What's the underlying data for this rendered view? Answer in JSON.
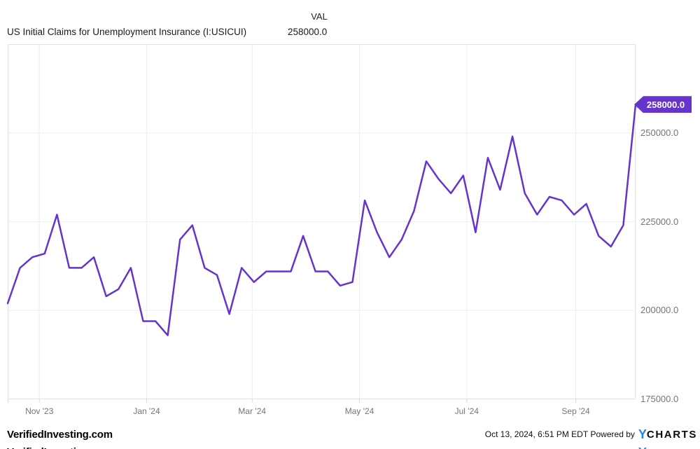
{
  "header": {
    "value_column_label": "VAL",
    "series_title": "US Initial Claims for Unemployment Insurance (I:USICUI)",
    "current_value": "258000.0"
  },
  "chart_data": {
    "type": "line",
    "title": "US Initial Claims for Unemployment Insurance (I:USICUI)",
    "xlabel": "",
    "ylabel": "",
    "legend": "none",
    "grid": true,
    "line_color": "#6633CC",
    "last_value_label": "258000.0",
    "ylim": [
      175000,
      275000
    ],
    "y_ticks": [
      {
        "label": "250000.0",
        "value": 250000
      },
      {
        "label": "225000.0",
        "value": 225000
      },
      {
        "label": "200000.0",
        "value": 200000
      },
      {
        "label": "175000.0",
        "value": 175000
      }
    ],
    "x_ticks": [
      {
        "label": "Nov '23",
        "date": "2023-11-01"
      },
      {
        "label": "Jan '24",
        "date": "2024-01-01"
      },
      {
        "label": "Mar '24",
        "date": "2024-03-01"
      },
      {
        "label": "May '24",
        "date": "2024-05-01"
      },
      {
        "label": "Jul '24",
        "date": "2024-07-01"
      },
      {
        "label": "Sep '24",
        "date": "2024-09-01"
      }
    ],
    "x": [
      "2023-10-14",
      "2023-10-21",
      "2023-10-28",
      "2023-11-04",
      "2023-11-11",
      "2023-11-18",
      "2023-11-25",
      "2023-12-02",
      "2023-12-09",
      "2023-12-16",
      "2023-12-23",
      "2023-12-30",
      "2024-01-06",
      "2024-01-13",
      "2024-01-20",
      "2024-01-27",
      "2024-02-03",
      "2024-02-10",
      "2024-02-17",
      "2024-02-24",
      "2024-03-02",
      "2024-03-09",
      "2024-03-16",
      "2024-03-23",
      "2024-03-30",
      "2024-04-06",
      "2024-04-13",
      "2024-04-20",
      "2024-04-27",
      "2024-05-04",
      "2024-05-11",
      "2024-05-18",
      "2024-05-25",
      "2024-06-01",
      "2024-06-08",
      "2024-06-15",
      "2024-06-22",
      "2024-06-29",
      "2024-07-06",
      "2024-07-13",
      "2024-07-20",
      "2024-07-27",
      "2024-08-03",
      "2024-08-10",
      "2024-08-17",
      "2024-08-24",
      "2024-08-31",
      "2024-09-07",
      "2024-09-14",
      "2024-09-21",
      "2024-09-28",
      "2024-10-05"
    ],
    "values": [
      202000,
      212000,
      215000,
      216000,
      227000,
      212000,
      212000,
      215000,
      204000,
      206000,
      212000,
      197000,
      197000,
      193000,
      220000,
      224000,
      212000,
      210000,
      199000,
      212000,
      208000,
      211000,
      211000,
      211000,
      221000,
      211000,
      211000,
      207000,
      208000,
      231000,
      222000,
      215000,
      220000,
      228000,
      242000,
      237000,
      233000,
      238000,
      222000,
      243000,
      234000,
      249000,
      233000,
      227000,
      232000,
      231000,
      227000,
      230000,
      221000,
      218000,
      224000,
      258000
    ]
  },
  "footer": {
    "left_brand": "VerifiedInvesting.com",
    "timestamp": "Oct 13, 2024, 6:51 PM EDT",
    "powered_by": " Powered by",
    "logo_y": "Y",
    "logo_charts": "CHARTS"
  },
  "colors": {
    "line": "#6633CC",
    "badge_bg": "#6633CC",
    "badge_text": "#ffffff",
    "gridline": "#eeeeee",
    "plot_border": "#e2e2e2",
    "tick_mark": "#d8d8d8",
    "axis_label": "#757575",
    "title_text": "#1a1a1a",
    "logo_blue": "#1E88E5"
  }
}
